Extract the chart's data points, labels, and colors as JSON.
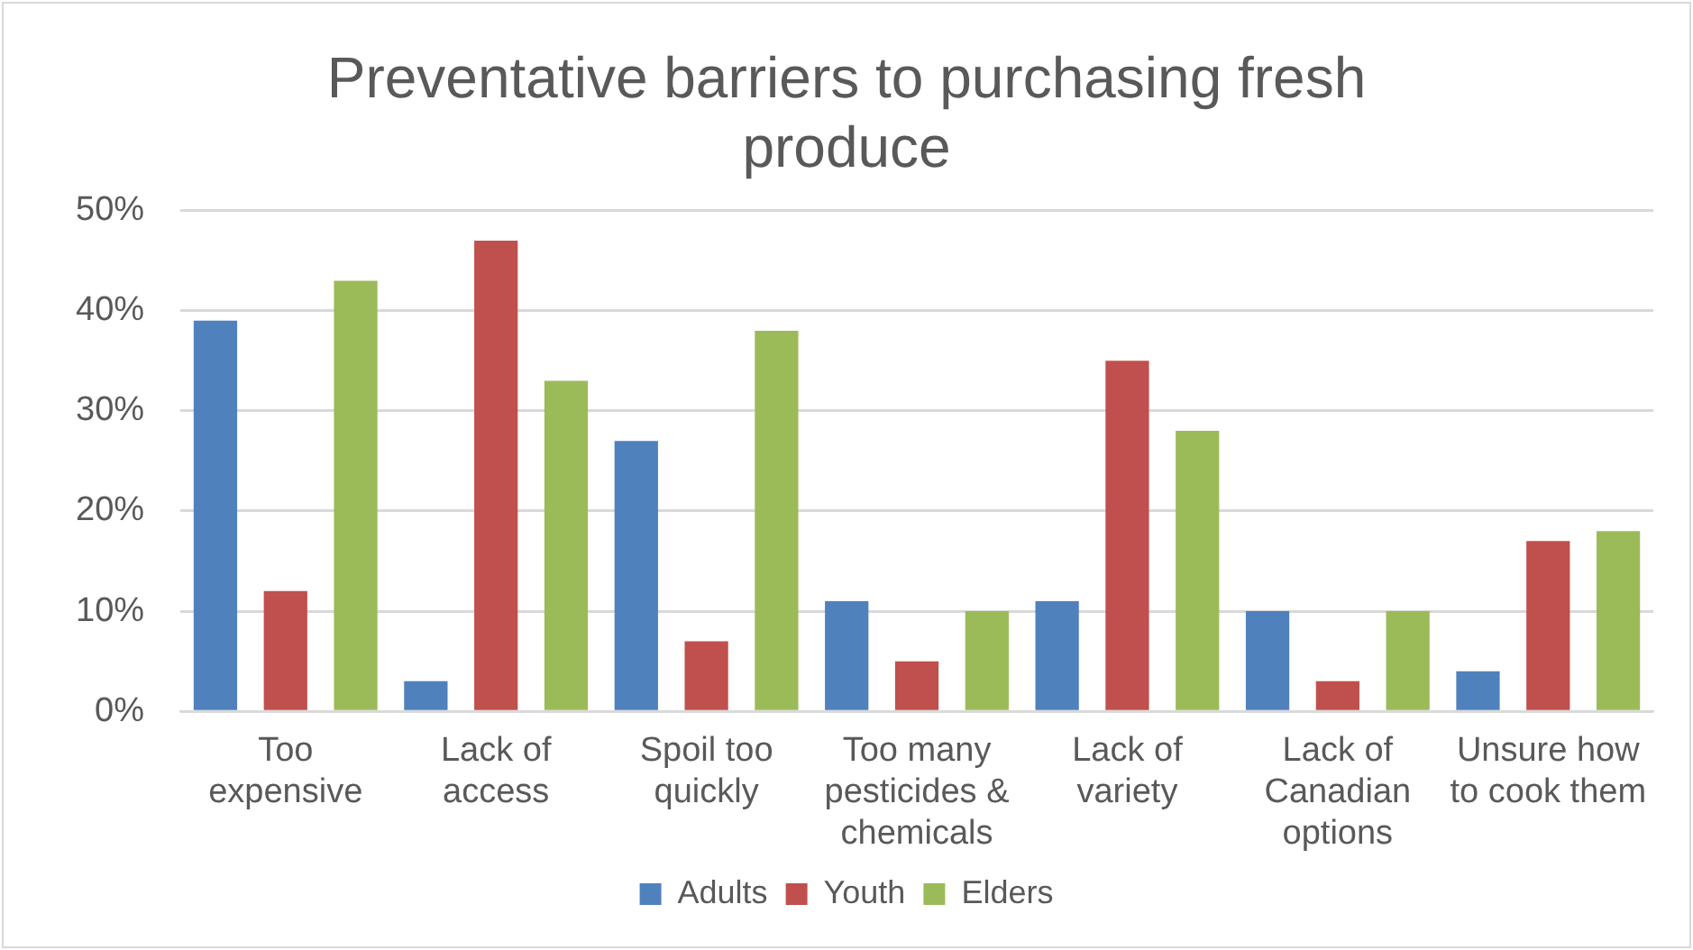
{
  "chart_data": {
    "type": "bar",
    "title": "Preventative barriers to purchasing fresh produce",
    "categories": [
      "Too expensive",
      "Lack of access",
      "Spoil too quickly",
      "Too many pesticides & chemicals",
      "Lack of variety",
      "Lack of Canadian options",
      "Unsure how to cook them"
    ],
    "series": [
      {
        "name": "Adults",
        "color": "#4f81bd",
        "values": [
          39,
          3,
          27,
          11,
          11,
          10,
          4
        ]
      },
      {
        "name": "Youth",
        "color": "#c0504d",
        "values": [
          12,
          47,
          7,
          5,
          35,
          3,
          17
        ]
      },
      {
        "name": "Elders",
        "color": "#9bbb59",
        "values": [
          43,
          33,
          38,
          10,
          28,
          10,
          18
        ]
      }
    ],
    "ylim": [
      0,
      50
    ],
    "yticks": [
      {
        "value": 0,
        "label": "0%"
      },
      {
        "value": 10,
        "label": "10%"
      },
      {
        "value": 20,
        "label": "20%"
      },
      {
        "value": 30,
        "label": "30%"
      },
      {
        "value": 40,
        "label": "40%"
      },
      {
        "value": 50,
        "label": "50%"
      }
    ],
    "grid": "y",
    "legend": "bottom"
  }
}
